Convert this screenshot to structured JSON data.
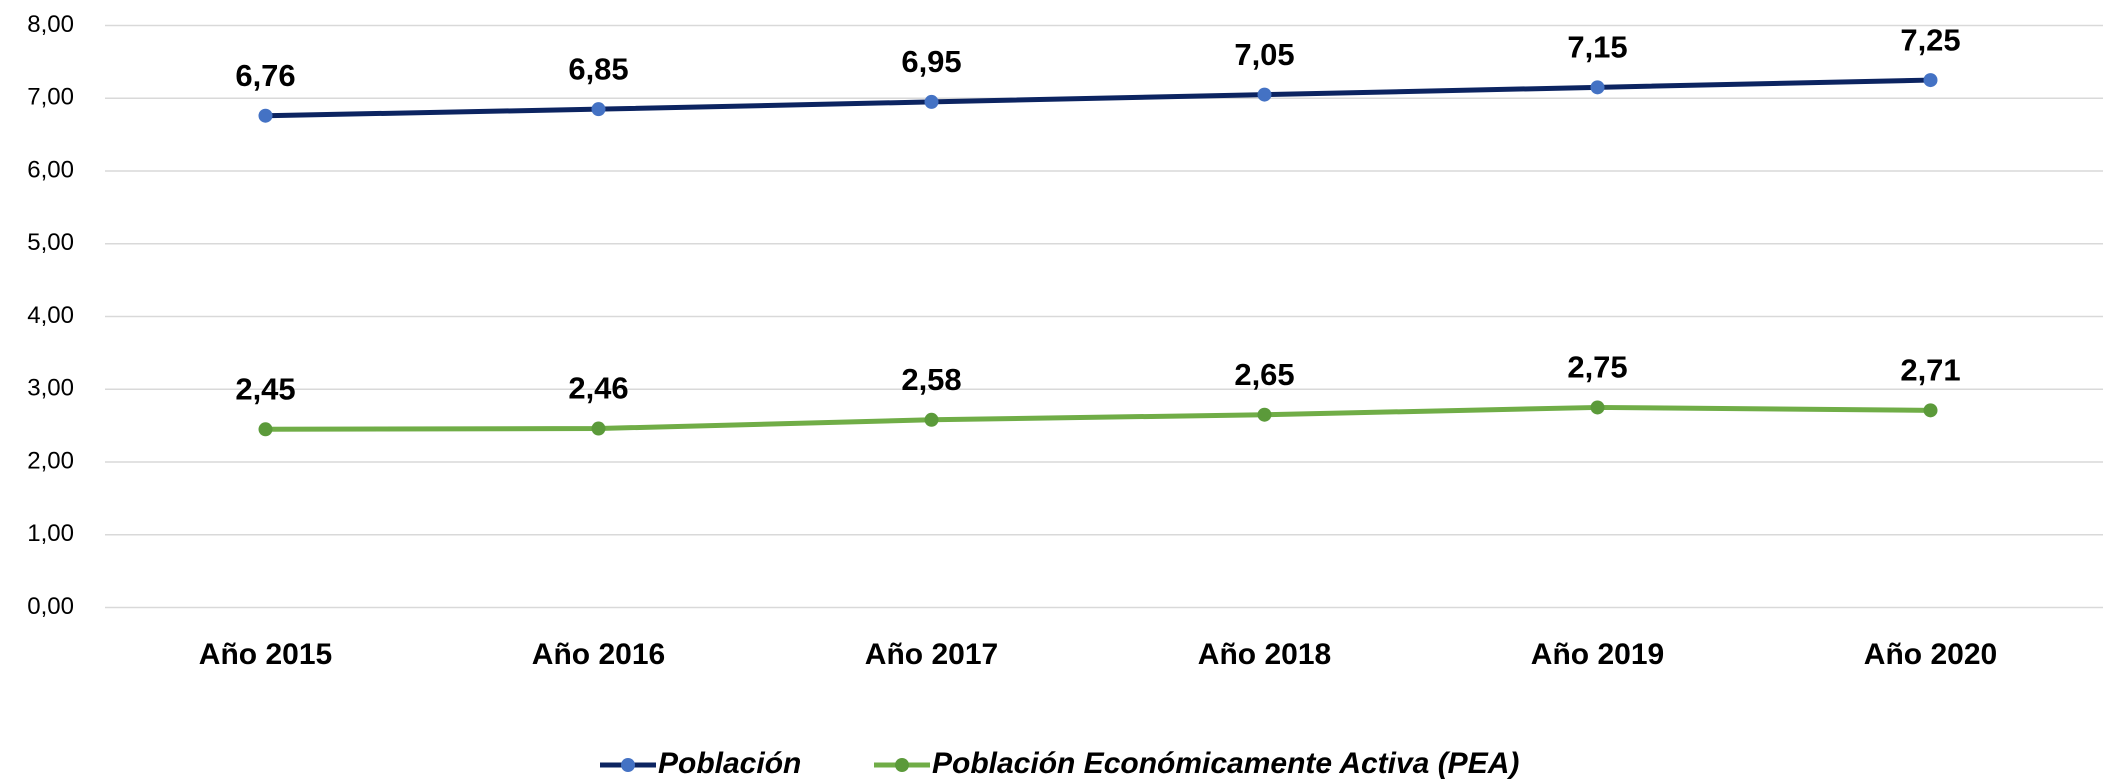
{
  "chart_data": {
    "type": "line",
    "categories": [
      "Año 2015",
      "Año 2016",
      "Año 2017",
      "Año 2018",
      "Año 2019",
      "Año 2020"
    ],
    "series": [
      {
        "name": "Población",
        "color": "#0c2461",
        "marker_color": "#4472c4",
        "values": [
          6.76,
          6.85,
          6.95,
          7.05,
          7.15,
          7.25
        ],
        "value_labels": [
          "6,76",
          "6,85",
          "6,95",
          "7,05",
          "7,15",
          "7,25"
        ]
      },
      {
        "name": "Población Económicamente Activa (PEA)",
        "color": "#70ad47",
        "marker_color": "#5b9a3a",
        "values": [
          2.45,
          2.46,
          2.58,
          2.65,
          2.75,
          2.71
        ],
        "value_labels": [
          "2,45",
          "2,46",
          "2,58",
          "2,65",
          "2,75",
          "2,71"
        ]
      }
    ],
    "ylim": [
      0,
      8
    ],
    "yticks": [
      {
        "value": 0,
        "label": "0,00"
      },
      {
        "value": 1,
        "label": "1,00"
      },
      {
        "value": 2,
        "label": "2,00"
      },
      {
        "value": 3,
        "label": "3,00"
      },
      {
        "value": 4,
        "label": "4,00"
      },
      {
        "value": 5,
        "label": "5,00"
      },
      {
        "value": 6,
        "label": "6,00"
      },
      {
        "value": 7,
        "label": "7,00"
      },
      {
        "value": 8,
        "label": "8,00"
      }
    ],
    "grid": true,
    "legend": "bottom"
  }
}
